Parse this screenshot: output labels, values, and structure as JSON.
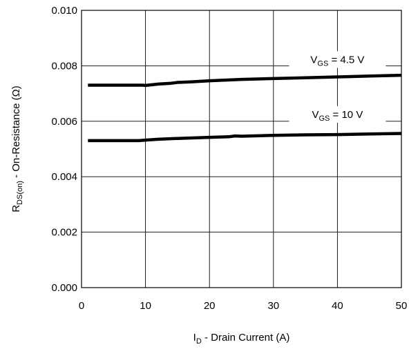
{
  "chart_data": {
    "type": "line",
    "xlim": [
      0,
      50
    ],
    "ylim": [
      0,
      0.01
    ],
    "x_ticks": [
      0,
      10,
      20,
      30,
      40,
      50
    ],
    "x_tick_labels": [
      "0",
      "10",
      "20",
      "30",
      "40",
      "50"
    ],
    "y_ticks": [
      0,
      0.002,
      0.004,
      0.006,
      0.008,
      0.01
    ],
    "y_tick_labels": [
      "0.000",
      "0.002",
      "0.004",
      "0.006",
      "0.008",
      "0.010"
    ],
    "grid": true,
    "xlabel": {
      "main": "I",
      "sub": "D",
      "rest": " - Drain Current (A)"
    },
    "ylabel": {
      "main": "R",
      "sub": "DS(on)",
      "rest": " - On-Resistance (Ω)"
    },
    "series": [
      {
        "label": {
          "main": "V",
          "sub": "GS",
          "rest": " = 4.5 V"
        },
        "label_at": {
          "x": 40,
          "y": 0.0081
        },
        "color": "#000000",
        "x": [
          1,
          5,
          9.5,
          10,
          12,
          14,
          15,
          17,
          20,
          25,
          30,
          35,
          40,
          45,
          50
        ],
        "y": [
          0.0073,
          0.0073,
          0.0073,
          0.00729,
          0.00734,
          0.00737,
          0.0074,
          0.00742,
          0.00746,
          0.00751,
          0.00754,
          0.00757,
          0.0076,
          0.00763,
          0.00766
        ]
      },
      {
        "label": {
          "main": "V",
          "sub": "GS",
          "rest": " = 10 V"
        },
        "label_at": {
          "x": 40,
          "y": 0.00612
        },
        "color": "#000000",
        "x": [
          1,
          5,
          9,
          10,
          12,
          15,
          20,
          23,
          24,
          25,
          30,
          35,
          40,
          45,
          50
        ],
        "y": [
          0.0053,
          0.0053,
          0.0053,
          0.00532,
          0.00535,
          0.00538,
          0.00542,
          0.00544,
          0.00547,
          0.00546,
          0.00549,
          0.00551,
          0.00552,
          0.00554,
          0.00556
        ]
      }
    ]
  }
}
